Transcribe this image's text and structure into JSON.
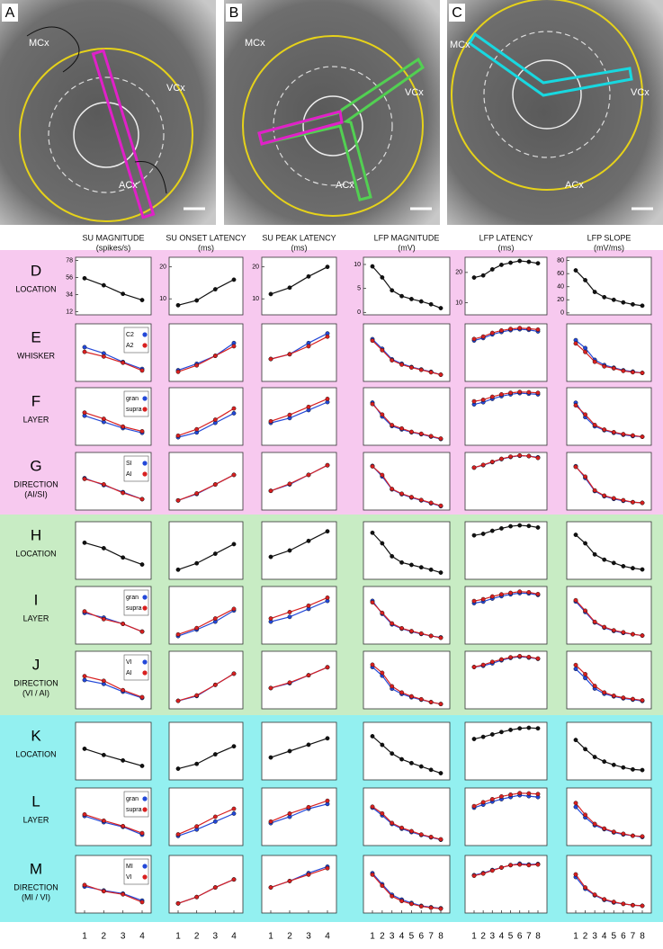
{
  "images": [
    {
      "label": "A",
      "regions": [
        "MCx",
        "VCx",
        "ACx"
      ]
    },
    {
      "label": "B",
      "regions": [
        "MCx",
        "VCx",
        "ACx"
      ]
    },
    {
      "label": "C",
      "regions": [
        "MCx",
        "VCx",
        "ACx"
      ]
    }
  ],
  "bands": [
    {
      "color": "#f7c9ef"
    },
    {
      "color": "#c8ecc4"
    },
    {
      "color": "#93f0f0"
    }
  ],
  "columns": [
    {
      "title": "SU MAGNITUDE",
      "unit": "(spikes/s)",
      "ylim": [
        8,
        82
      ],
      "yticks": [
        12,
        34,
        56,
        78
      ],
      "xticks": [
        1,
        2,
        3,
        4
      ]
    },
    {
      "title": "SU ONSET LATENCY",
      "unit": "(ms)",
      "ylim": [
        5,
        23
      ],
      "yticks": [
        10,
        20
      ],
      "xticks": [
        1,
        2,
        3,
        4
      ]
    },
    {
      "title": "SU PEAK LATENCY",
      "unit": "(ms)",
      "ylim": [
        5,
        23
      ],
      "yticks": [
        10,
        20
      ],
      "xticks": [
        1,
        2,
        3,
        4
      ]
    },
    {
      "title": "LFP  MAGNITUDE",
      "unit": "(mV)",
      "ylim": [
        -0.5,
        11.5
      ],
      "yticks": [
        0,
        5,
        10
      ],
      "xticks": [
        1,
        2,
        3,
        4,
        5,
        6,
        7,
        8
      ]
    },
    {
      "title": "LFP  LATENCY",
      "unit": "(ms)",
      "ylim": [
        6,
        25
      ],
      "yticks": [
        10,
        20
      ],
      "xticks": [
        1,
        2,
        3,
        4,
        5,
        6,
        7,
        8
      ]
    },
    {
      "title": "LFP  SLOPE",
      "unit": "(mV/ms)",
      "ylim": [
        -3,
        85
      ],
      "yticks": [
        0,
        20,
        40,
        60,
        80
      ],
      "xticks": [
        1,
        2,
        3,
        4,
        5,
        6,
        7,
        8
      ]
    }
  ],
  "rows": [
    {
      "letter": "D",
      "name": [
        "LOCATION"
      ],
      "band": 0,
      "series": [
        {
          "color": "#111111"
        }
      ],
      "plots": [
        [
          [
            55,
            46,
            35,
            27
          ]
        ],
        [
          [
            8,
            9.5,
            13,
            16
          ]
        ],
        [
          [
            11.5,
            13.5,
            17,
            20
          ]
        ],
        [
          [
            9.6,
            7.3,
            4.6,
            3.4,
            2.8,
            2.3,
            1.7,
            0.9
          ]
        ],
        [
          [
            18.3,
            19,
            21,
            22.5,
            23.2,
            23.8,
            23.5,
            23
          ]
        ],
        [
          [
            65,
            50,
            32,
            24,
            20,
            16,
            13,
            11
          ]
        ]
      ]
    },
    {
      "letter": "E",
      "name": [
        "WHISKER"
      ],
      "band": 0,
      "series": [
        {
          "name": "C2",
          "color": "#2348d8"
        },
        {
          "name": "A2",
          "color": "#d82020"
        }
      ],
      "plots": [
        [
          [
            52,
            44,
            33,
            24
          ],
          [
            46,
            40,
            32,
            22
          ]
        ],
        [
          [
            8.5,
            10.5,
            13,
            17
          ],
          [
            8,
            10,
            13,
            16
          ]
        ],
        [
          [
            12,
            13.5,
            17,
            20
          ],
          [
            12,
            13.5,
            16,
            19
          ]
        ],
        [
          [
            8.3,
            6.3,
            4.1,
            3.2,
            2.5,
            2,
            1.5,
            0.9
          ],
          [
            8,
            6,
            3.9,
            3,
            2.4,
            1.9,
            1.4,
            0.9
          ]
        ],
        [
          [
            19.5,
            20.3,
            21.5,
            22.3,
            22.9,
            23.2,
            23,
            22.5
          ],
          [
            20,
            20.8,
            22,
            22.8,
            23.3,
            23.6,
            23.4,
            23.1
          ]
        ],
        [
          [
            60,
            48,
            30,
            22,
            18,
            14,
            12,
            10
          ],
          [
            55,
            42,
            27,
            20,
            17,
            13,
            11,
            10
          ]
        ]
      ]
    },
    {
      "letter": "F",
      "name": [
        "LAYER"
      ],
      "band": 0,
      "series": [
        {
          "name": "gran",
          "color": "#2348d8"
        },
        {
          "name": "supra",
          "color": "#d82020"
        }
      ],
      "plots": [
        [
          [
            46,
            38,
            30,
            24
          ],
          [
            50,
            42,
            32,
            26
          ]
        ],
        [
          [
            7.5,
            9,
            12,
            15
          ],
          [
            8,
            10,
            13,
            16.5
          ]
        ],
        [
          [
            12,
            13.5,
            16,
            18.5
          ],
          [
            12.5,
            14.5,
            17,
            19.5
          ]
        ],
        [
          [
            8.4,
            5.5,
            3.5,
            2.8,
            2.2,
            1.8,
            1.3,
            0.8
          ],
          [
            8.1,
            5.9,
            3.7,
            3,
            2.3,
            1.9,
            1.4,
            0.9
          ]
        ],
        [
          [
            19.5,
            20.2,
            21.3,
            22.2,
            22.8,
            23.2,
            23,
            22.8
          ],
          [
            20.5,
            21,
            22,
            22.8,
            23.3,
            23.6,
            23.5,
            23.3
          ]
        ],
        [
          [
            62,
            40,
            26,
            20,
            16,
            13,
            11,
            10
          ],
          [
            58,
            44,
            28,
            21,
            17,
            14,
            12,
            10
          ]
        ]
      ]
    },
    {
      "letter": "G",
      "name": [
        "DIRECTION",
        "(AI/SI)"
      ],
      "band": 0,
      "series": [
        {
          "name": "SI",
          "color": "#2348d8"
        },
        {
          "name": "AI",
          "color": "#d82020"
        }
      ],
      "plots": [
        [
          [
            49,
            40,
            31,
            22
          ],
          [
            48,
            41,
            30,
            22
          ]
        ],
        [
          [
            8,
            10,
            13,
            16
          ],
          [
            8,
            10.2,
            13,
            16
          ]
        ],
        [
          [
            11,
            13,
            16,
            19
          ],
          [
            11,
            13.2,
            16,
            19
          ]
        ],
        [
          [
            8.7,
            6.5,
            3.8,
            2.8,
            2.1,
            1.5,
            0.9,
            0.3
          ],
          [
            8.6,
            6.8,
            3.9,
            2.9,
            2.2,
            1.6,
            1,
            0.4
          ]
        ],
        [
          [
            20,
            20.8,
            21.8,
            22.8,
            23.5,
            23.9,
            23.8,
            23.4
          ],
          [
            20,
            20.9,
            21.9,
            22.9,
            23.6,
            24,
            23.8,
            23.2
          ]
        ],
        [
          [
            64,
            46,
            26,
            18,
            14,
            11,
            9,
            8
          ],
          [
            63,
            48,
            27,
            19,
            15,
            12,
            9,
            8
          ]
        ]
      ]
    },
    {
      "letter": "H",
      "name": [
        "LOCATION"
      ],
      "band": 1,
      "series": [
        {
          "color": "#111111"
        }
      ],
      "plots": [
        [
          [
            55,
            48,
            36,
            27
          ]
        ],
        [
          [
            8,
            10,
            13,
            16
          ]
        ],
        [
          [
            12,
            14,
            17,
            20
          ]
        ],
        [
          [
            9.2,
            7,
            4.3,
            3,
            2.5,
            2,
            1.5,
            0.9
          ]
        ],
        [
          [
            20.5,
            21,
            22,
            22.8,
            23.5,
            23.8,
            23.6,
            23.1
          ]
        ],
        [
          [
            65,
            52,
            35,
            27,
            22,
            17,
            14,
            12
          ]
        ]
      ]
    },
    {
      "letter": "I",
      "name": [
        "LAYER"
      ],
      "band": 1,
      "series": [
        {
          "name": "gran",
          "color": "#2348d8"
        },
        {
          "name": "supra",
          "color": "#d82020"
        }
      ],
      "plots": [
        [
          [
            48,
            42,
            34,
            24
          ],
          [
            50,
            40,
            34,
            24
          ]
        ],
        [
          [
            7.5,
            9.5,
            12,
            15.5
          ],
          [
            8,
            10,
            13,
            16
          ]
        ],
        [
          [
            12,
            13.5,
            16,
            18.5
          ],
          [
            13,
            15,
            17,
            19.5
          ]
        ],
        [
          [
            8.5,
            5.8,
            3.6,
            2.7,
            2.1,
            1.6,
            1.2,
            0.9
          ],
          [
            8.2,
            6,
            3.8,
            2.8,
            2.2,
            1.7,
            1.2,
            0.8
          ]
        ],
        [
          [
            19.5,
            20,
            21,
            21.8,
            22.4,
            22.8,
            22.7,
            22.2
          ],
          [
            20.2,
            20.8,
            21.7,
            22.4,
            22.9,
            23.3,
            23.1,
            22.5
          ]
        ],
        [
          [
            62,
            46,
            30,
            22,
            17,
            14,
            12,
            10
          ],
          [
            64,
            48,
            31,
            23,
            18,
            15,
            12,
            10
          ]
        ]
      ]
    },
    {
      "letter": "J",
      "name": [
        "DIRECTION",
        "(VI / AI)"
      ],
      "band": 1,
      "series": [
        {
          "name": "VI",
          "color": "#2348d8"
        },
        {
          "name": "AI",
          "color": "#d82020"
        }
      ],
      "plots": [
        [
          [
            45,
            40,
            30,
            22
          ],
          [
            50,
            44,
            32,
            23
          ]
        ],
        [
          [
            7.5,
            9,
            12.5,
            16
          ],
          [
            7.5,
            9.2,
            12.5,
            16
          ]
        ],
        [
          [
            11.5,
            13,
            15.5,
            18
          ],
          [
            11.5,
            13.2,
            15.5,
            18
          ]
        ],
        [
          [
            8.2,
            6.4,
            3.7,
            2.6,
            1.9,
            1.4,
            0.9,
            0.5
          ],
          [
            8.7,
            7,
            4.2,
            2.9,
            2.1,
            1.5,
            0.9,
            0.5
          ]
        ],
        [
          [
            19.8,
            20.2,
            21,
            22,
            22.8,
            23.2,
            22.9,
            22.5
          ],
          [
            19.8,
            20.5,
            21.5,
            22.3,
            23,
            23.4,
            23.1,
            22.6
          ]
        ],
        [
          [
            58,
            44,
            28,
            20,
            16,
            13,
            11,
            9
          ],
          [
            64,
            50,
            32,
            22,
            17,
            14,
            12,
            10
          ]
        ]
      ]
    },
    {
      "letter": "K",
      "name": [
        "LOCATION"
      ],
      "band": 2,
      "series": [
        {
          "color": "#111111"
        }
      ],
      "plots": [
        [
          [
            48,
            40,
            33,
            26
          ]
        ],
        [
          [
            8.5,
            10,
            13,
            15.5
          ]
        ],
        [
          [
            12,
            14,
            16,
            18
          ]
        ],
        [
          [
            8.6,
            6.8,
            5,
            3.8,
            3,
            2.3,
            1.6,
            0.9
          ]
        ],
        [
          [
            19.5,
            20.2,
            21,
            21.8,
            22.5,
            23,
            23.2,
            23
          ]
        ],
        [
          [
            58,
            44,
            32,
            25,
            20,
            16,
            13,
            12
          ]
        ]
      ]
    },
    {
      "letter": "L",
      "name": [
        "LAYER"
      ],
      "band": 2,
      "series": [
        {
          "name": "gran",
          "color": "#2348d8"
        },
        {
          "name": "supra",
          "color": "#d82020"
        }
      ],
      "plots": [
        [
          [
            46,
            38,
            32,
            22
          ],
          [
            48,
            40,
            33,
            24
          ]
        ],
        [
          [
            8,
            10,
            12.5,
            15
          ],
          [
            8.5,
            11,
            14,
            16.5
          ]
        ],
        [
          [
            12,
            14,
            16.5,
            18
          ],
          [
            12.5,
            15,
            17,
            19
          ]
        ],
        [
          [
            7.4,
            5.8,
            4,
            3,
            2.3,
            1.7,
            1.2,
            0.7
          ],
          [
            7.6,
            6.2,
            4.2,
            3.2,
            2.5,
            1.8,
            1.3,
            0.8
          ]
        ],
        [
          [
            18.5,
            19.5,
            20.5,
            21.3,
            22,
            22.6,
            22.3,
            22
          ],
          [
            19,
            20.3,
            21.3,
            22.2,
            22.8,
            23.3,
            23.2,
            23
          ]
        ],
        [
          [
            56,
            40,
            28,
            22,
            17,
            14,
            12,
            10
          ],
          [
            62,
            44,
            30,
            23,
            18,
            15,
            12,
            11
          ]
        ]
      ]
    },
    {
      "letter": "M",
      "name": [
        "DIRECTION",
        "(MI / VI)"
      ],
      "band": 2,
      "series": [
        {
          "name": "MI",
          "color": "#2348d8"
        },
        {
          "name": "VI",
          "color": "#d82020"
        }
      ],
      "plots": [
        [
          [
            42,
            37,
            33,
            24
          ],
          [
            44,
            36,
            32,
            22
          ]
        ],
        [
          [
            8,
            10,
            13,
            15.5
          ],
          [
            8,
            10,
            13,
            15.5
          ]
        ],
        [
          [
            13,
            15,
            17.5,
            19.5
          ],
          [
            13,
            15,
            17,
            19
          ]
        ],
        [
          [
            7.8,
            5.5,
            3.3,
            2.3,
            1.6,
            1,
            0.7,
            0.5
          ],
          [
            7.5,
            5.2,
            3,
            2,
            1.4,
            0.9,
            0.6,
            0.4
          ]
        ],
        [
          [
            18.5,
            19.2,
            20.2,
            21,
            21.8,
            22.3,
            22,
            22.2
          ],
          [
            18.3,
            19,
            20,
            21,
            21.8,
            22,
            21.8,
            22
          ]
        ],
        [
          [
            52,
            34,
            24,
            17,
            13,
            11,
            9,
            8
          ],
          [
            56,
            36,
            25,
            18,
            14,
            11,
            9,
            8
          ]
        ]
      ]
    }
  ]
}
